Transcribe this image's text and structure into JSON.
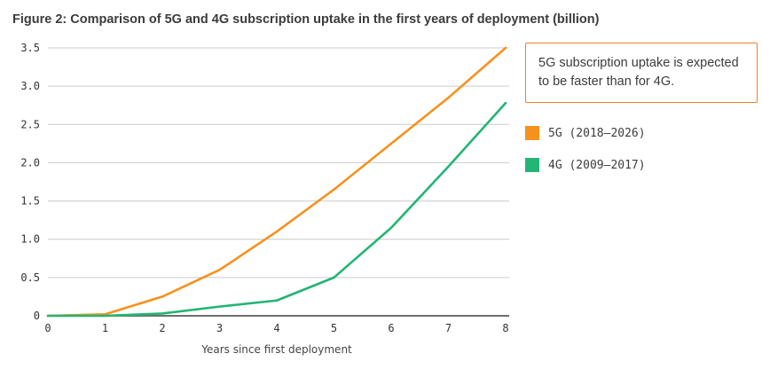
{
  "figure": {
    "title": "Figure 2: Comparison of 5G and 4G subscription uptake in the first years of deployment (billion)"
  },
  "annotation": {
    "text": "5G subscription uptake is expected to be faster than for 4G."
  },
  "colors": {
    "line_5g": "#f6911e",
    "line_4g": "#22b573",
    "grid": "#cccccc",
    "axis": "#6e6e6e",
    "callout_border": "#f08123"
  },
  "chart_data": {
    "type": "line",
    "title": "Comparison of 5G and 4G subscription uptake in the first years of deployment (billion)",
    "xlabel": "Years since first deployment",
    "ylabel": "",
    "xlim": [
      0,
      8
    ],
    "ylim": [
      0,
      3.5
    ],
    "xticks": [
      0,
      1,
      2,
      3,
      4,
      5,
      6,
      7,
      8
    ],
    "xtick_labels": [
      "0",
      "1",
      "2",
      "3",
      "4",
      "5",
      "6",
      "7",
      "8"
    ],
    "yticks": [
      0,
      0.5,
      1.0,
      1.5,
      2.0,
      2.5,
      3.0,
      3.5
    ],
    "ytick_labels": [
      "0",
      "0.5",
      "1.0",
      "1.5",
      "2.0",
      "2.5",
      "3.0",
      "3.5"
    ],
    "grid": "horizontal",
    "legend_position": "right",
    "x": [
      0,
      1,
      2,
      3,
      4,
      5,
      6,
      7,
      8
    ],
    "series": [
      {
        "name": "5G (2018–2026)",
        "color": "#f6911e",
        "values": [
          0,
          0.02,
          0.25,
          0.6,
          1.1,
          1.65,
          2.25,
          2.85,
          3.5
        ]
      },
      {
        "name": "4G (2009–2017)",
        "color": "#22b573",
        "values": [
          0,
          0,
          0.03,
          0.12,
          0.2,
          0.5,
          1.15,
          1.95,
          2.78
        ]
      }
    ]
  }
}
